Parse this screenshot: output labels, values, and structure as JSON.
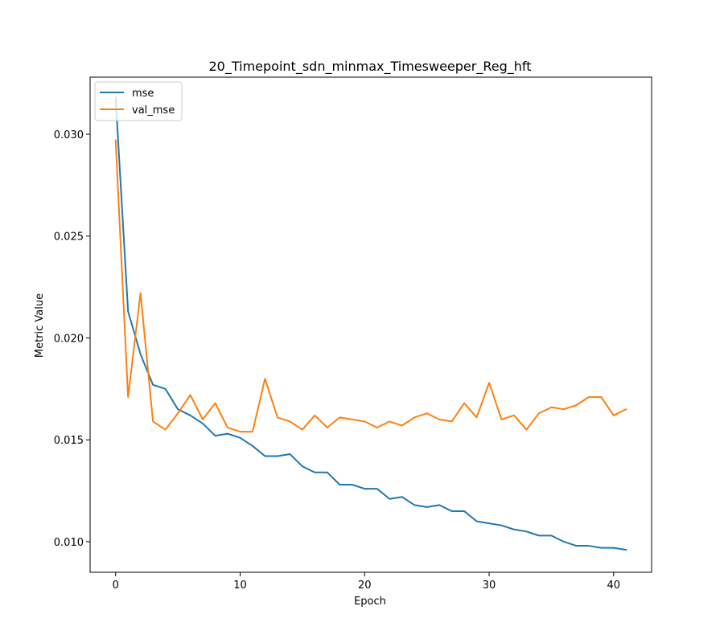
{
  "chart_data": {
    "type": "line",
    "title": "20_Timepoint_sdn_minmax_Timesweeper_Reg_hft",
    "xlabel": "Epoch",
    "ylabel": "Metric Value",
    "xlim": [
      -2.05,
      43.05
    ],
    "ylim": [
      0.0085,
      0.0328
    ],
    "xticks": [
      0,
      10,
      20,
      30,
      40
    ],
    "yticks": [
      0.01,
      0.015,
      0.02,
      0.025,
      0.03
    ],
    "ytick_labels": [
      "0.010",
      "0.015",
      "0.020",
      "0.025",
      "0.030"
    ],
    "grid": false,
    "legend": "upper-left",
    "x": [
      0,
      1,
      2,
      3,
      4,
      5,
      6,
      7,
      8,
      9,
      10,
      11,
      12,
      13,
      14,
      15,
      16,
      17,
      18,
      19,
      20,
      21,
      22,
      23,
      24,
      25,
      26,
      27,
      28,
      29,
      30,
      31,
      32,
      33,
      34,
      35,
      36,
      37,
      38,
      39,
      40,
      41
    ],
    "series": [
      {
        "name": "mse",
        "color": "#1f77b4",
        "values": [
          0.0318,
          0.0213,
          0.0192,
          0.0177,
          0.0175,
          0.0165,
          0.0162,
          0.0158,
          0.0152,
          0.0153,
          0.0151,
          0.0147,
          0.0142,
          0.0142,
          0.0143,
          0.0137,
          0.0134,
          0.0134,
          0.0128,
          0.0128,
          0.0126,
          0.0126,
          0.0121,
          0.0122,
          0.0118,
          0.0117,
          0.0118,
          0.0115,
          0.0115,
          0.011,
          0.0109,
          0.0108,
          0.0106,
          0.0105,
          0.0103,
          0.0103,
          0.01,
          0.0098,
          0.0098,
          0.0097,
          0.0097,
          0.0096
        ]
      },
      {
        "name": "val_mse",
        "color": "#ff7f0e",
        "values": [
          0.0297,
          0.0171,
          0.0222,
          0.0159,
          0.0155,
          0.0163,
          0.0172,
          0.016,
          0.0168,
          0.0156,
          0.0154,
          0.0154,
          0.018,
          0.0161,
          0.0159,
          0.0155,
          0.0162,
          0.0156,
          0.0161,
          0.016,
          0.0159,
          0.0156,
          0.0159,
          0.0157,
          0.0161,
          0.0163,
          0.016,
          0.0159,
          0.0168,
          0.0161,
          0.0178,
          0.016,
          0.0162,
          0.0155,
          0.0163,
          0.0166,
          0.0165,
          0.0167,
          0.0171,
          0.0171,
          0.0162,
          0.0165
        ]
      }
    ]
  }
}
